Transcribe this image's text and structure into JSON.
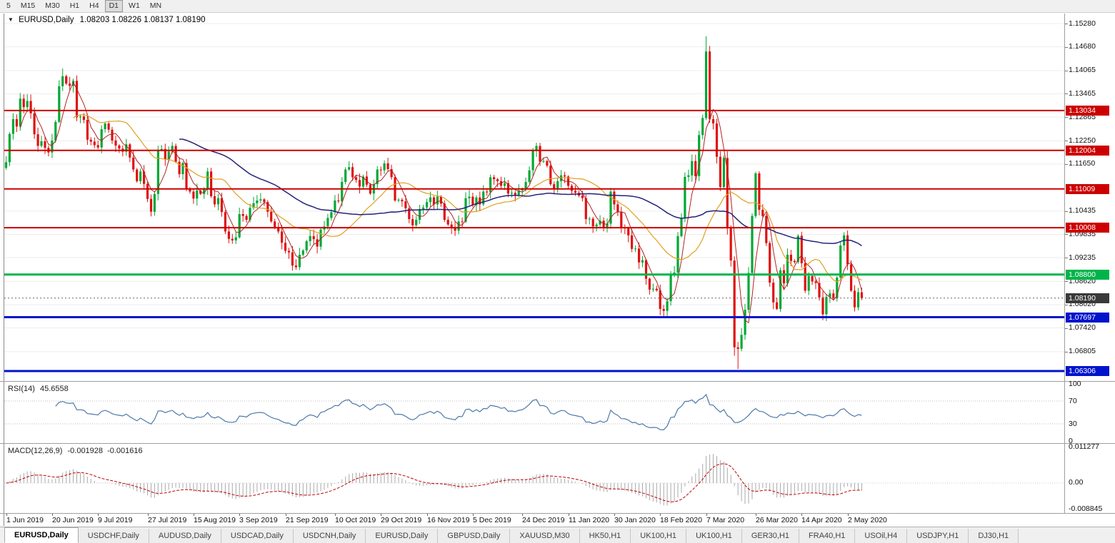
{
  "toolbar": {
    "timeframes": [
      "5",
      "M15",
      "M30",
      "H1",
      "H4",
      "D1",
      "W1",
      "MN"
    ],
    "active": "D1"
  },
  "chart": {
    "symbol": "EURUSD,Daily",
    "ohlc": "1.08203 1.08226 1.08137 1.08190",
    "open": "1.08203",
    "high": "1.08226",
    "low": "1.08137",
    "close": "1.08190"
  },
  "rsi": {
    "label": "RSI(14)",
    "value": "45.6558",
    "axis_labels": [
      "100",
      "70",
      "30",
      "0"
    ]
  },
  "macd": {
    "label": "MACD(12,26,9)",
    "value1": "-0.001928",
    "value2": "-0.001616",
    "axis_labels": [
      "0.011277",
      "0.00",
      "-0.008845"
    ]
  },
  "price_axis": {
    "ticks": [
      "1.15280",
      "1.14680",
      "1.14065",
      "1.13465",
      "1.12865",
      "1.12250",
      "1.11650",
      "1.10435",
      "1.09835",
      "1.09235",
      "1.08620",
      "1.08020",
      "1.07420",
      "1.06805"
    ]
  },
  "dates": [
    {
      "label": "1 Jun 2019",
      "i": 0
    },
    {
      "label": "20 Jun 2019",
      "i": 13
    },
    {
      "label": "9 Jul 2019",
      "i": 26
    },
    {
      "label": "27 Jul 2019",
      "i": 40
    },
    {
      "label": "15 Aug 2019",
      "i": 53
    },
    {
      "label": "3 Sep 2019",
      "i": 66
    },
    {
      "label": "21 Sep 2019",
      "i": 79
    },
    {
      "label": "10 Oct 2019",
      "i": 93
    },
    {
      "label": "29 Oct 2019",
      "i": 106
    },
    {
      "label": "16 Nov 2019",
      "i": 119
    },
    {
      "label": "5 Dec 2019",
      "i": 132
    },
    {
      "label": "24 Dec 2019",
      "i": 146
    },
    {
      "label": "11 Jan 2020",
      "i": 159
    },
    {
      "label": "30 Jan 2020",
      "i": 172
    },
    {
      "label": "18 Feb 2020",
      "i": 185
    },
    {
      "label": "7 Mar 2020",
      "i": 198
    },
    {
      "label": "26 Mar 2020",
      "i": 212
    },
    {
      "label": "14 Apr 2020",
      "i": 225
    },
    {
      "label": "2 May 2020",
      "i": 238
    }
  ],
  "tabs": [
    {
      "label": "EURUSD,Daily",
      "active": true
    },
    {
      "label": "USDCHF,Daily",
      "active": false
    },
    {
      "label": "AUDUSD,Daily",
      "active": false
    },
    {
      "label": "USDCAD,Daily",
      "active": false
    },
    {
      "label": "USDCNH,Daily",
      "active": false
    },
    {
      "label": "EURUSD,Daily",
      "active": false
    },
    {
      "label": "GBPUSD,Daily",
      "active": false
    },
    {
      "label": "XAUUSD,M30",
      "active": false
    },
    {
      "label": "HK50,H1",
      "active": false
    },
    {
      "label": "UK100,H1",
      "active": false
    },
    {
      "label": "UK100,H1",
      "active": false
    },
    {
      "label": "GER30,H1",
      "active": false
    },
    {
      "label": "FRA40,H1",
      "active": false
    },
    {
      "label": "USOil,H4",
      "active": false
    },
    {
      "label": "USDJPY,H1",
      "active": false
    },
    {
      "label": "DJ30,H1",
      "active": false
    }
  ],
  "chart_data": {
    "type": "candlestick",
    "title": "EURUSD,Daily",
    "ylim": [
      1.06048,
      1.15538
    ],
    "colors": {
      "up": "#00a835",
      "down": "#e01010",
      "ma_fast": "#b22222",
      "ma_mid": "#dfa022",
      "ma_slow": "#23237a",
      "rsi_line": "#4d79a8",
      "macd_hist": "#a9a9a9",
      "macd_signal": "#c00000",
      "grid": "#ededed"
    },
    "closes": [
      1.117,
      1.1243,
      1.1281,
      1.1262,
      1.1334,
      1.1312,
      1.1328,
      1.1296,
      1.1242,
      1.1212,
      1.1224,
      1.1207,
      1.1195,
      1.1226,
      1.1274,
      1.1366,
      1.1392,
      1.1373,
      1.1367,
      1.138,
      1.1286,
      1.1288,
      1.1279,
      1.1228,
      1.1223,
      1.1214,
      1.1208,
      1.1255,
      1.127,
      1.1254,
      1.1226,
      1.1213,
      1.1205,
      1.1197,
      1.1216,
      1.1182,
      1.1151,
      1.1121,
      1.1146,
      1.1114,
      1.1075,
      1.1042,
      1.1088,
      1.1201,
      1.1204,
      1.1178,
      1.1198,
      1.1212,
      1.1171,
      1.1139,
      1.1168,
      1.1102,
      1.1094,
      1.1076,
      1.1097,
      1.1088,
      1.1101,
      1.1146,
      1.1082,
      1.1061,
      1.1077,
      1.1041,
      1.0991,
      1.0972,
      1.0968,
      1.0976,
      1.1036,
      1.1031,
      1.1021,
      1.1052,
      1.1064,
      1.1071,
      1.1074,
      1.1067,
      1.1042,
      1.1017,
      1.1001,
      1.0991,
      1.0962,
      1.0941,
      1.0937,
      1.0903,
      1.0899,
      1.0931,
      1.0942,
      1.0966,
      1.0979,
      1.0971,
      1.0952,
      1.0996,
      1.1004,
      1.1026,
      1.1041,
      1.1071,
      1.1069,
      1.1119,
      1.1151,
      1.1157,
      1.1131,
      1.1124,
      1.1107,
      1.1133,
      1.1112,
      1.1089,
      1.1113,
      1.1151,
      1.1149,
      1.1167,
      1.1152,
      1.1131,
      1.1071,
      1.1073,
      1.1069,
      1.1051,
      1.1023,
      1.1007,
      1.1021,
      1.1049,
      1.1053,
      1.1067,
      1.1079,
      1.1061,
      1.1081,
      1.1063,
      1.1021,
      1.1009,
      1.1001,
      1.0993,
      1.1017,
      1.1016,
      1.1077,
      1.1081,
      1.1059,
      1.1079,
      1.1061,
      1.1094,
      1.1092,
      1.1131,
      1.1126,
      1.1121,
      1.1109,
      1.1116,
      1.1089,
      1.1091,
      1.1086,
      1.1097,
      1.1101,
      1.1119,
      1.1149,
      1.1199,
      1.1212,
      1.1171,
      1.1173,
      1.1161,
      1.1113,
      1.1102,
      1.1121,
      1.1136,
      1.1133,
      1.1109,
      1.1096,
      1.1091,
      1.1084,
      1.1077,
      1.1023,
      1.1024,
      1.1004,
      1.1009,
      1.1019,
      1.1002,
      1.1011,
      1.1094,
      1.1061,
      1.1041,
      1.1001,
      1.0999,
      1.0981,
      1.0946,
      1.0947,
      1.0911,
      1.0917,
      1.0869,
      1.0841,
      1.0843,
      1.0839,
      1.0791,
      1.0786,
      1.0811,
      1.0881,
      1.0885,
      1.0979,
      1.1026,
      1.1132,
      1.1136,
      1.1173,
      1.1134,
      1.124,
      1.1284,
      1.1456,
      1.1281,
      1.127,
      1.1184,
      1.1106,
      1.1181,
      1.0999,
      1.0916,
      1.0692,
      1.0688,
      1.0724,
      1.0789,
      1.0884,
      1.1031,
      1.1141,
      1.1047,
      1.1031,
      1.0961,
      1.0859,
      1.0808,
      1.0791,
      1.0891,
      1.0857,
      1.0931,
      1.0915,
      1.0912,
      1.098,
      1.0909,
      1.0838,
      1.0876,
      1.0862,
      1.0858,
      1.0821,
      1.0777,
      1.0822,
      1.0831,
      1.0818,
      1.0872,
      1.0955,
      1.0981,
      1.0906,
      1.0838,
      1.0795,
      1.0834,
      1.0819
    ],
    "wick_overrides": {
      "16": {
        "h": 1.1412
      },
      "198": {
        "h": 1.1495
      },
      "206": {
        "l": 1.067
      },
      "207": {
        "l": 1.0636
      }
    },
    "overlays": [
      {
        "name": "ma-fast",
        "period": 5,
        "color": "#b22222",
        "width": 1
      },
      {
        "name": "ma-mid",
        "period": 20,
        "color": "#dfa022",
        "width": 1.2
      },
      {
        "name": "ma-slow",
        "period": 50,
        "color": "#23237a",
        "width": 1.5
      }
    ],
    "hlines": [
      {
        "price": 1.13034,
        "label": "1.13034",
        "color": "#cc0000",
        "w": 2
      },
      {
        "price": 1.12004,
        "label": "1.12004",
        "color": "#cc0000",
        "w": 2
      },
      {
        "price": 1.11009,
        "label": "1.11009",
        "color": "#cc0000",
        "w": 2
      },
      {
        "price": 1.10008,
        "label": "1.10008",
        "color": "#cc0000",
        "w": 2
      },
      {
        "price": 1.088,
        "label": "1.08800",
        "color": "#00b44a",
        "w": 3
      },
      {
        "price": 1.07697,
        "label": "1.07697",
        "color": "#0013cc",
        "w": 3
      },
      {
        "price": 1.06306,
        "label": "1.06306",
        "color": "#0013cc",
        "w": 3
      }
    ],
    "current_price": {
      "price": 1.0819,
      "label": "1.08190",
      "bg": "#3a3a3a"
    },
    "rsi": {
      "period": 14,
      "last": 45.6558,
      "ylim": [
        0,
        100
      ],
      "dotted_levels": [
        70,
        30
      ]
    },
    "macd": {
      "fast": 12,
      "slow": 26,
      "signal": 9,
      "ylim": [
        -0.008845,
        0.011277
      ]
    }
  }
}
